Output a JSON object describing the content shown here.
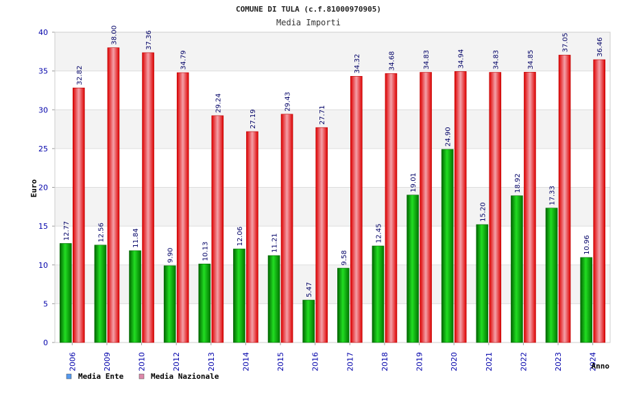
{
  "chart_data": {
    "type": "bar",
    "title": "COMUNE DI TULA (c.f.81000970905)",
    "subtitle": "Media Importi",
    "xlabel": "Anno",
    "ylabel": "Euro",
    "ylim": [
      0,
      40
    ],
    "yticks": [
      0,
      5,
      10,
      15,
      20,
      25,
      30,
      35,
      40
    ],
    "grid": true,
    "legend_position": "bottom-left",
    "categories": [
      "2006",
      "2009",
      "2010",
      "2012",
      "2013",
      "2014",
      "2015",
      "2016",
      "2017",
      "2018",
      "2019",
      "2020",
      "2021",
      "2022",
      "2023",
      "2024"
    ],
    "series": [
      {
        "name": "Media Ente",
        "color": "#00bb00",
        "legend_color": "#5599ee",
        "values": [
          12.77,
          12.56,
          11.84,
          9.9,
          10.13,
          12.06,
          11.21,
          5.47,
          9.58,
          12.45,
          19.01,
          24.9,
          15.2,
          18.92,
          17.33,
          10.96
        ],
        "labels": [
          "12.77",
          "12.56",
          "11.84",
          "9.90",
          "10.13",
          "12.06",
          "11.21",
          "5.47",
          "9.58",
          "12.45",
          "19.01",
          "24.90",
          "15.20",
          "18.92",
          "17.33",
          "10.96"
        ]
      },
      {
        "name": "Media Nazionale",
        "color": "#ee1111",
        "legend_color": "#dd88aa",
        "values": [
          32.82,
          38.0,
          37.36,
          34.79,
          29.24,
          27.19,
          29.43,
          27.71,
          34.32,
          34.68,
          34.83,
          34.94,
          34.83,
          34.85,
          37.05,
          36.46
        ],
        "labels": [
          "32.82",
          "38.00",
          "37.36",
          "34.79",
          "29.24",
          "27.19",
          "29.43",
          "27.71",
          "34.32",
          "34.68",
          "34.83",
          "34.94",
          "34.83",
          "34.85",
          "37.05",
          "36.46"
        ]
      }
    ]
  }
}
